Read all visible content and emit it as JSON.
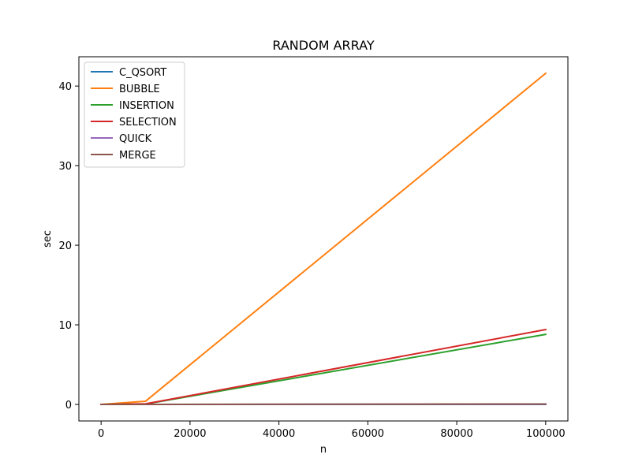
{
  "chart_data": {
    "type": "line",
    "title": "RANDOM ARRAY",
    "xlabel": "n",
    "ylabel": "sec",
    "xlim": [
      -5000,
      105000
    ],
    "ylim": [
      -2.08,
      43.68
    ],
    "xticks": [
      0,
      20000,
      40000,
      60000,
      80000,
      100000
    ],
    "xtick_labels": [
      "0",
      "20000",
      "40000",
      "60000",
      "80000",
      "100000"
    ],
    "yticks": [
      0,
      10,
      20,
      30,
      40
    ],
    "ytick_labels": [
      "0",
      "10",
      "20",
      "30",
      "40"
    ],
    "grid": false,
    "legend_position": "top-left",
    "x": [
      0,
      10000,
      100000
    ],
    "series": [
      {
        "name": "C_QSORT",
        "color": "#1f77b4",
        "values": [
          0.0,
          0.0,
          0.0
        ]
      },
      {
        "name": "BUBBLE",
        "color": "#ff7f0e",
        "values": [
          0.0,
          0.4,
          41.6
        ]
      },
      {
        "name": "INSERTION",
        "color": "#2ca02c",
        "values": [
          0.0,
          0.05,
          8.8
        ]
      },
      {
        "name": "SELECTION",
        "color": "#d62728",
        "values": [
          0.0,
          0.07,
          9.4
        ]
      },
      {
        "name": "QUICK",
        "color": "#9467bd",
        "values": [
          0.0,
          0.0,
          0.02
        ]
      },
      {
        "name": "MERGE",
        "color": "#8c564b",
        "values": [
          0.0,
          0.0,
          0.05
        ]
      }
    ]
  }
}
